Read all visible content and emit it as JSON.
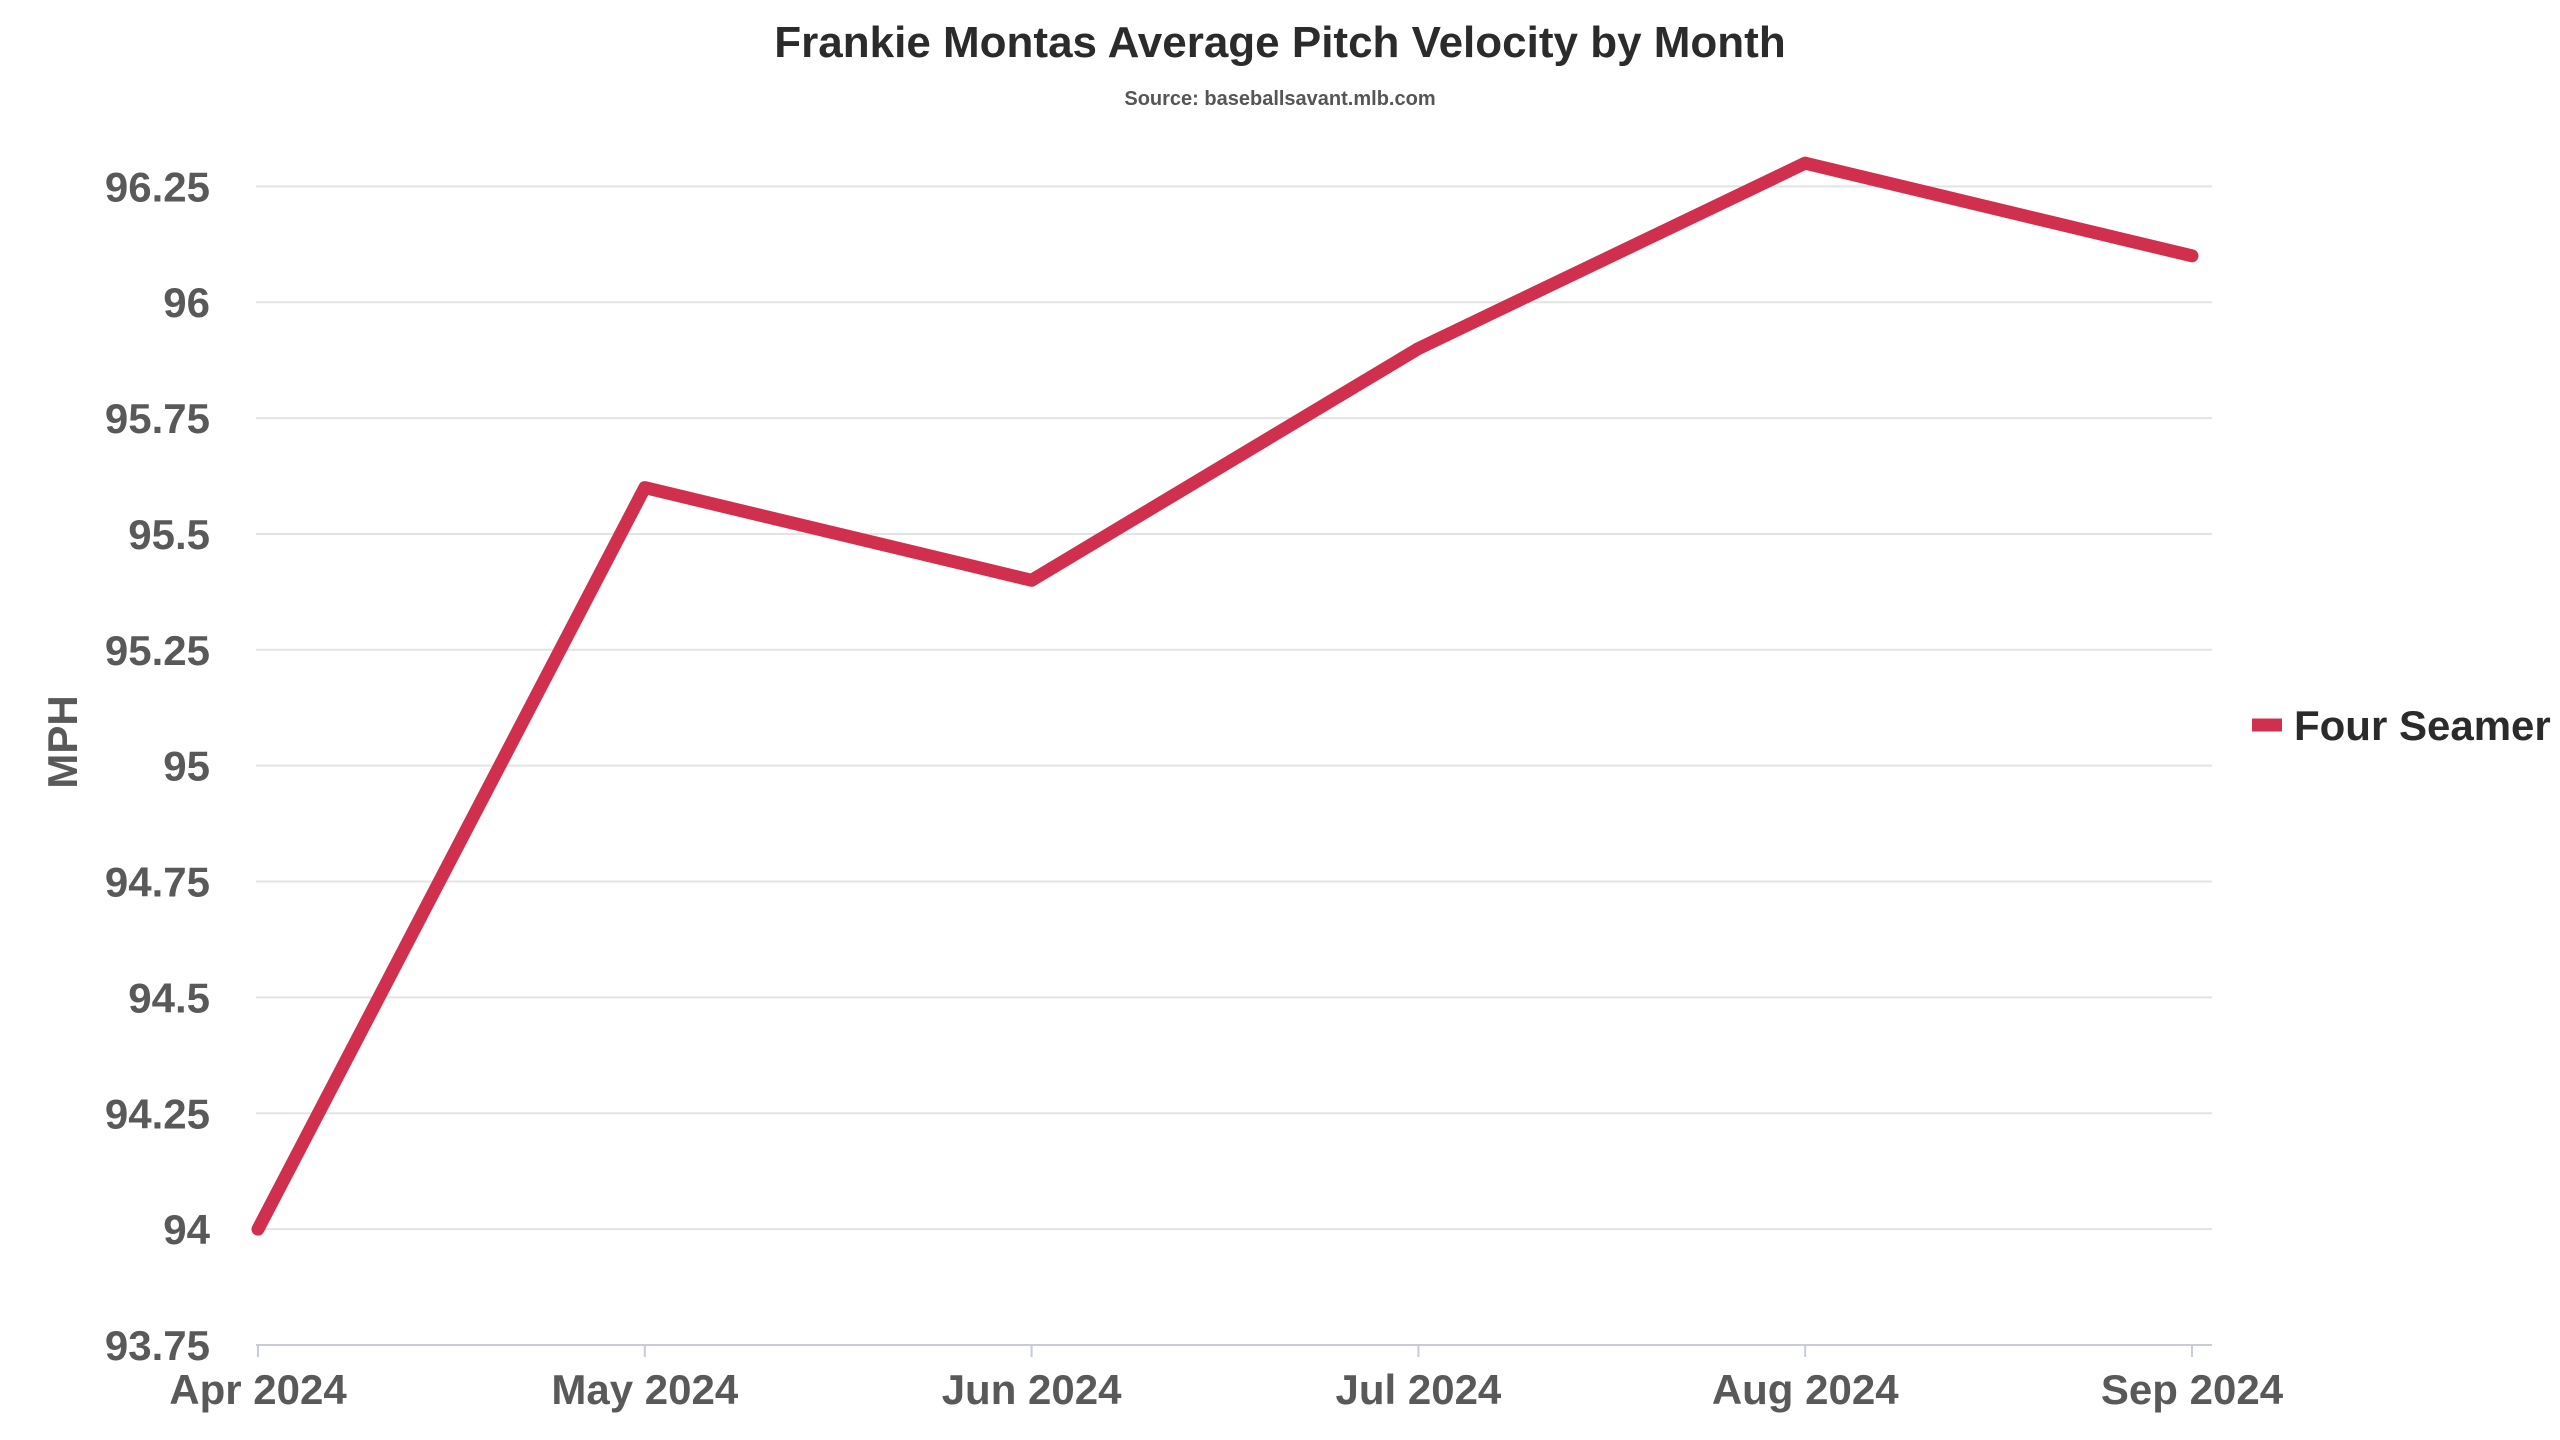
{
  "chart_data": {
    "type": "line",
    "title": "Frankie Montas Average Pitch Velocity by Month",
    "subtitle": "Source: baseballsavant.mlb.com",
    "xlabel": "",
    "ylabel": "MPH",
    "categories": [
      "Apr 2024",
      "May 2024",
      "Jun 2024",
      "Jul 2024",
      "Aug 2024",
      "Sep 2024"
    ],
    "series": [
      {
        "name": "Four Seamer",
        "color": "#d0304e",
        "values": [
          94.0,
          95.6,
          95.4,
          95.9,
          96.3,
          96.1
        ]
      }
    ],
    "ylim": [
      93.75,
      96.35
    ],
    "yticks": [
      "93.75",
      "94",
      "94.25",
      "94.5",
      "94.75",
      "95",
      "95.25",
      "95.5",
      "95.75",
      "96",
      "96.25"
    ],
    "grid": true,
    "legend_position": "right"
  }
}
